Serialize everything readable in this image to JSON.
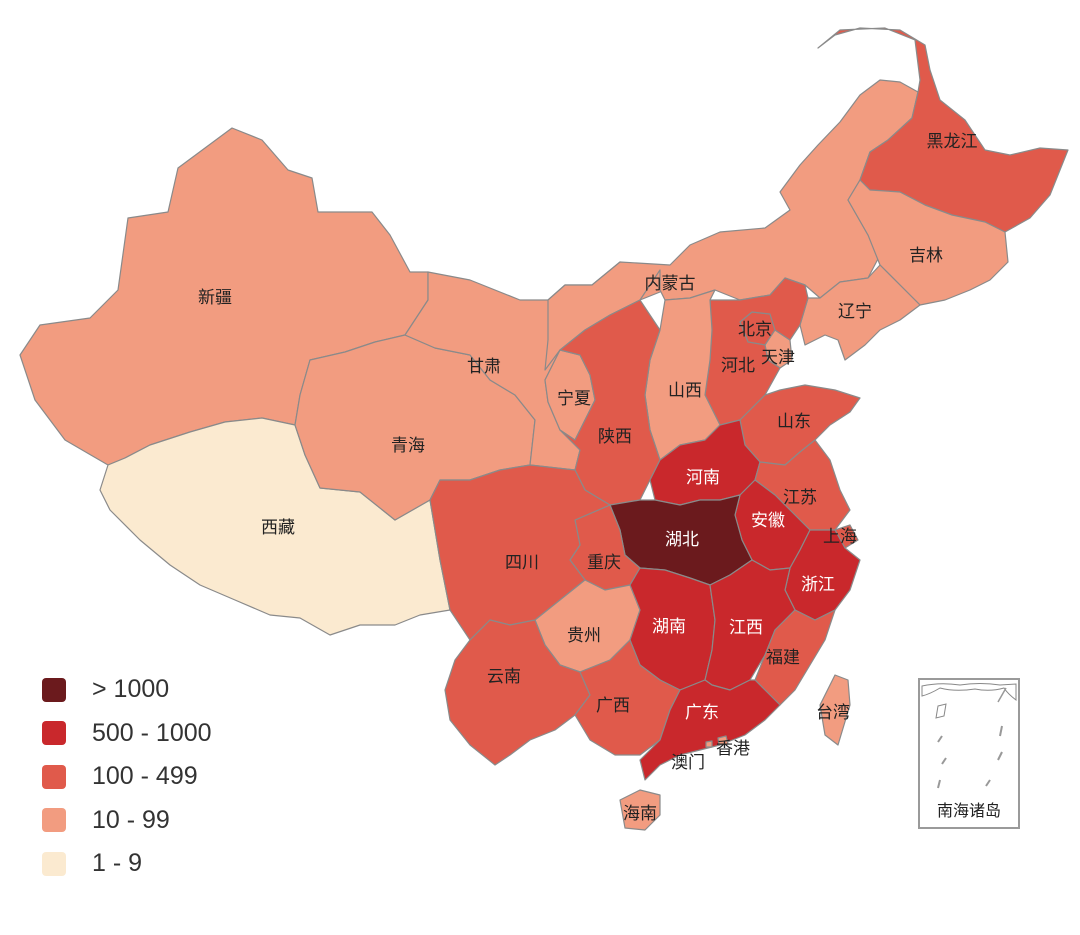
{
  "legend": [
    {
      "label": "> 1000",
      "color": "#6b1a1d"
    },
    {
      "label": "500 - 1000",
      "color": "#c9282c"
    },
    {
      "label": "100 - 499",
      "color": "#e05a4b"
    },
    {
      "label": "10 - 99",
      "color": "#f29c80"
    },
    {
      "label": "1 - 9",
      "color": "#fbead0"
    }
  ],
  "provinces": [
    {
      "id": "xinjiang",
      "name": "新疆",
      "level": 3
    },
    {
      "id": "xizang",
      "name": "西藏",
      "level": 4
    },
    {
      "id": "qinghai",
      "name": "青海",
      "level": 3
    },
    {
      "id": "gansu",
      "name": "甘肃",
      "level": 3
    },
    {
      "id": "neimenggu",
      "name": "内蒙古",
      "level": 3
    },
    {
      "id": "heilongjiang",
      "name": "黑龙江",
      "level": 2
    },
    {
      "id": "jilin",
      "name": "吉林",
      "level": 3
    },
    {
      "id": "liaoning",
      "name": "辽宁",
      "level": 3
    },
    {
      "id": "beijing",
      "name": "北京",
      "level": 2
    },
    {
      "id": "tianjin",
      "name": "天津",
      "level": 3
    },
    {
      "id": "hebei",
      "name": "河北",
      "level": 2
    },
    {
      "id": "shanxi",
      "name": "山西",
      "level": 3
    },
    {
      "id": "ningxia",
      "name": "宁夏",
      "level": 3
    },
    {
      "id": "shaanxi",
      "name": "陕西",
      "level": 2
    },
    {
      "id": "shandong",
      "name": "山东",
      "level": 2
    },
    {
      "id": "henan",
      "name": "河南",
      "level": 1
    },
    {
      "id": "jiangsu",
      "name": "江苏",
      "level": 2
    },
    {
      "id": "anhui",
      "name": "安徽",
      "level": 1
    },
    {
      "id": "shanghai",
      "name": "上海",
      "level": 2
    },
    {
      "id": "hubei",
      "name": "湖北",
      "level": 0
    },
    {
      "id": "chongqing",
      "name": "重庆",
      "level": 2
    },
    {
      "id": "sichuan",
      "name": "四川",
      "level": 2
    },
    {
      "id": "zhejiang",
      "name": "浙江",
      "level": 1
    },
    {
      "id": "guizhou",
      "name": "贵州",
      "level": 3
    },
    {
      "id": "hunan",
      "name": "湖南",
      "level": 1
    },
    {
      "id": "jiangxi",
      "name": "江西",
      "level": 1
    },
    {
      "id": "fujian",
      "name": "福建",
      "level": 2
    },
    {
      "id": "yunnan",
      "name": "云南",
      "level": 2
    },
    {
      "id": "guangxi",
      "name": "广西",
      "level": 2
    },
    {
      "id": "guangdong",
      "name": "广东",
      "level": 1
    },
    {
      "id": "taiwan",
      "name": "台湾",
      "level": 3
    },
    {
      "id": "hainan",
      "name": "海南",
      "level": 3
    },
    {
      "id": "xianggang",
      "name": "香港",
      "level": 3
    },
    {
      "id": "aomen",
      "name": "澳门",
      "level": 3
    }
  ],
  "inset": {
    "label": "南海诸岛"
  }
}
